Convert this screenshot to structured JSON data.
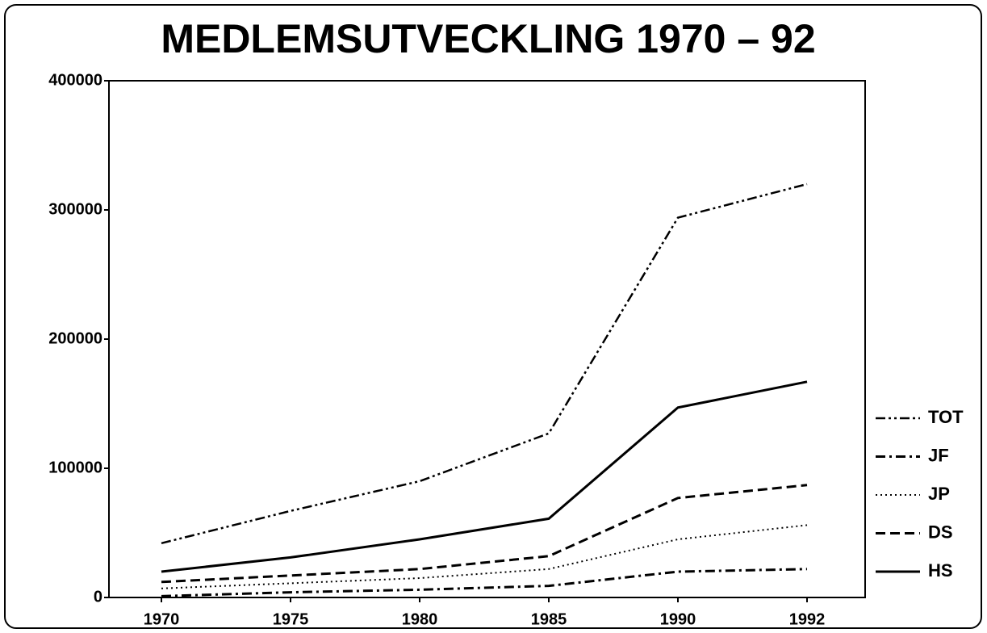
{
  "chart_data": {
    "type": "line",
    "title": "MEDLEMSUTVECKLING 1970 – 92",
    "categories": [
      "1970",
      "1975",
      "1980",
      "1985",
      "1990",
      "1992"
    ],
    "series": [
      {
        "name": "TOT",
        "color": "#000000",
        "style": "dash-dot-dot",
        "values": [
          42000,
          67000,
          90000,
          127000,
          294000,
          320000
        ]
      },
      {
        "name": "JF",
        "color": "#000000",
        "style": "dash-dot",
        "values": [
          1000,
          4000,
          6000,
          9000,
          20000,
          22000
        ]
      },
      {
        "name": "JP",
        "color": "#000000",
        "style": "dotted",
        "values": [
          7000,
          11000,
          15000,
          22000,
          45000,
          56000
        ]
      },
      {
        "name": "DS",
        "color": "#000000",
        "style": "dashed",
        "values": [
          12000,
          17000,
          22000,
          32000,
          77000,
          87000
        ]
      },
      {
        "name": "HS",
        "color": "#000000",
        "style": "solid",
        "values": [
          20000,
          31000,
          45000,
          61000,
          147000,
          167000
        ]
      }
    ],
    "ylim": [
      0,
      400000
    ],
    "yticks": [
      0,
      100000,
      200000,
      300000,
      400000
    ],
    "grid": false,
    "legend": "right"
  }
}
